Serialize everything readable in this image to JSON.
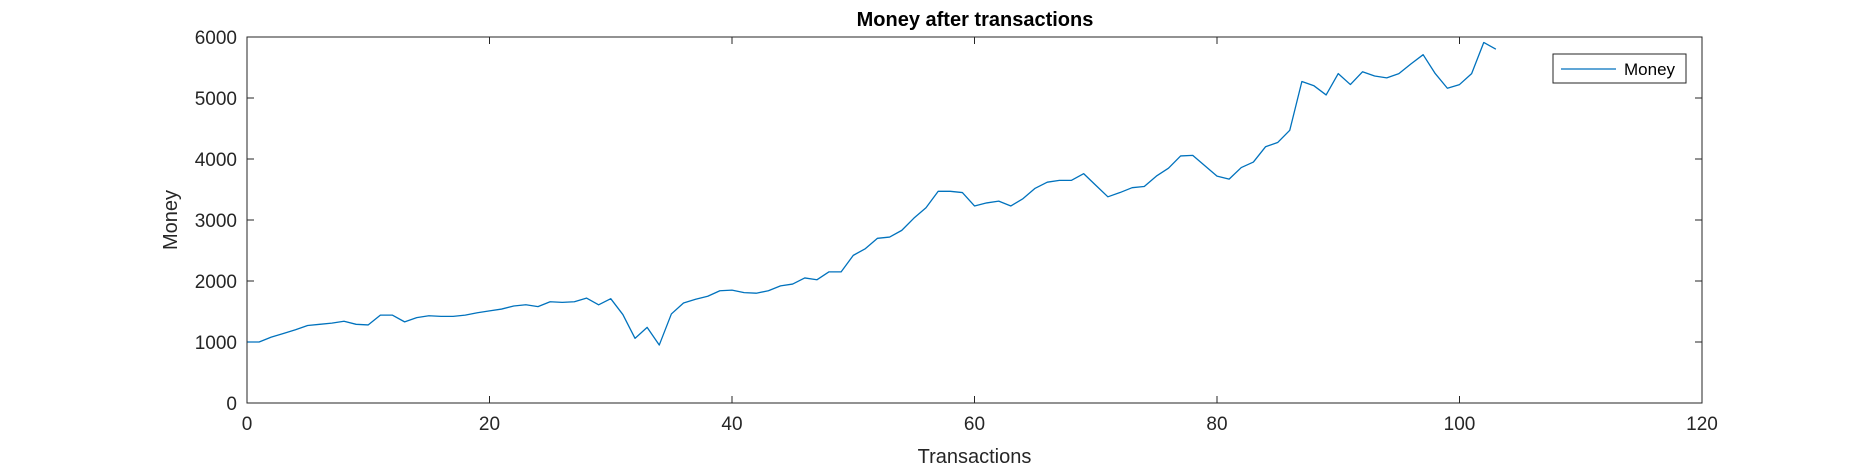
{
  "chart_data": {
    "type": "line",
    "title": "Money after transactions",
    "xlabel": "Transactions",
    "ylabel": "Money",
    "xlim": [
      0,
      120
    ],
    "ylim": [
      0,
      6000
    ],
    "xticks": [
      0,
      20,
      40,
      60,
      80,
      100,
      120
    ],
    "yticks": [
      0,
      1000,
      2000,
      3000,
      4000,
      5000,
      6000
    ],
    "grid": false,
    "legend_position": "top-right",
    "series": [
      {
        "name": "Money",
        "color": "#0072BD",
        "x": [
          0,
          1,
          2,
          3,
          4,
          5,
          6,
          7,
          8,
          9,
          10,
          11,
          12,
          13,
          14,
          15,
          16,
          17,
          18,
          19,
          20,
          21,
          22,
          23,
          24,
          25,
          26,
          27,
          28,
          29,
          30,
          31,
          32,
          33,
          34,
          35,
          36,
          37,
          38,
          39,
          40,
          41,
          42,
          43,
          44,
          45,
          46,
          47,
          48,
          49,
          50,
          51,
          52,
          53,
          54,
          55,
          56,
          57,
          58,
          59,
          60,
          61,
          62,
          63,
          64,
          65,
          66,
          67,
          68,
          69,
          70,
          71,
          72,
          73,
          74,
          75,
          76,
          77,
          78,
          79,
          80,
          81,
          82,
          83,
          84,
          85,
          86,
          87,
          88,
          89,
          90,
          91,
          92,
          93,
          94,
          95,
          96,
          97,
          98,
          99,
          100,
          101,
          102,
          103
        ],
        "values": [
          1000,
          1000,
          1080,
          1140,
          1200,
          1270,
          1290,
          1310,
          1340,
          1290,
          1280,
          1440,
          1440,
          1330,
          1400,
          1430,
          1420,
          1420,
          1440,
          1480,
          1510,
          1540,
          1590,
          1610,
          1580,
          1660,
          1650,
          1660,
          1720,
          1610,
          1710,
          1450,
          1060,
          1240,
          950,
          1460,
          1640,
          1700,
          1750,
          1840,
          1850,
          1810,
          1800,
          1840,
          1920,
          1950,
          2050,
          2020,
          2150,
          2150,
          2420,
          2530,
          2700,
          2720,
          2830,
          3030,
          3200,
          3470,
          3470,
          3450,
          3230,
          3280,
          3310,
          3230,
          3350,
          3520,
          3620,
          3650,
          3650,
          3760,
          3570,
          3380,
          3450,
          3530,
          3550,
          3720,
          3850,
          4050,
          4060,
          3890,
          3720,
          3670,
          3860,
          3950,
          4200,
          4270,
          4470,
          5270,
          5200,
          5050,
          5400,
          5220,
          5430,
          5360,
          5330,
          5400,
          5560,
          5710,
          5400,
          5160,
          5220,
          5400,
          5910,
          5800
        ]
      }
    ]
  }
}
